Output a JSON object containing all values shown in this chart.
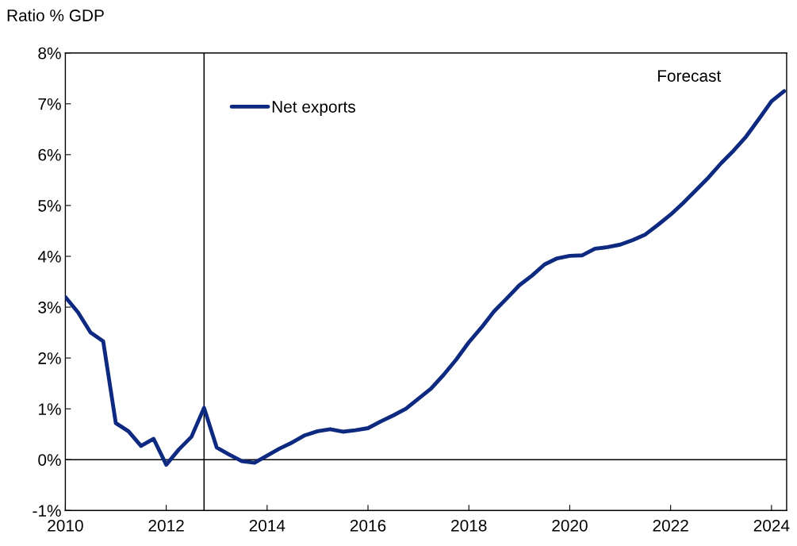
{
  "chart_data": {
    "type": "line",
    "ylabel": "Ratio % GDP",
    "x": [
      2010.0,
      2010.25,
      2010.5,
      2010.75,
      2011.0,
      2011.25,
      2011.5,
      2011.75,
      2012.0,
      2012.25,
      2012.5,
      2012.75,
      2013.0,
      2013.25,
      2013.5,
      2013.75,
      2014.0,
      2014.25,
      2014.5,
      2014.75,
      2015.0,
      2015.25,
      2015.5,
      2015.75,
      2016.0,
      2016.25,
      2016.5,
      2016.75,
      2017.0,
      2017.25,
      2017.5,
      2017.75,
      2018.0,
      2018.25,
      2018.5,
      2018.75,
      2019.0,
      2019.25,
      2019.5,
      2019.75,
      2020.0,
      2020.25,
      2020.5,
      2020.75,
      2021.0,
      2021.25,
      2021.5,
      2021.75,
      2022.0,
      2022.25,
      2022.5,
      2022.75,
      2023.0,
      2023.25,
      2023.5,
      2023.75,
      2024.0,
      2024.25
    ],
    "series": [
      {
        "name": "Net exports",
        "color": "#0d2a80",
        "values": [
          3.2,
          2.9,
          2.5,
          2.33,
          0.72,
          0.56,
          0.27,
          0.41,
          -0.1,
          0.2,
          0.45,
          1.02,
          0.24,
          0.1,
          -0.03,
          -0.06,
          0.08,
          0.22,
          0.34,
          0.48,
          0.56,
          0.6,
          0.55,
          0.58,
          0.62,
          0.75,
          0.87,
          1.0,
          1.2,
          1.4,
          1.67,
          1.97,
          2.31,
          2.6,
          2.92,
          3.17,
          3.43,
          3.62,
          3.84,
          3.96,
          4.01,
          4.02,
          4.15,
          4.18,
          4.23,
          4.32,
          4.43,
          4.62,
          4.82,
          5.05,
          5.3,
          5.55,
          5.83,
          6.08,
          6.36,
          6.7,
          7.05,
          7.25
        ]
      }
    ],
    "xlim": [
      2010,
      2024.3
    ],
    "xticks": [
      2010,
      2012,
      2014,
      2016,
      2018,
      2020,
      2022,
      2024
    ],
    "ylim": [
      -1,
      8
    ],
    "yticks": [
      {
        "value": -1,
        "label": "-1%"
      },
      {
        "value": 0,
        "label": "0%"
      },
      {
        "value": 1,
        "label": "1%"
      },
      {
        "value": 2,
        "label": "2%"
      },
      {
        "value": 3,
        "label": "3%"
      },
      {
        "value": 4,
        "label": "4%"
      },
      {
        "value": 5,
        "label": "5%"
      },
      {
        "value": 6,
        "label": "6%"
      },
      {
        "value": 7,
        "label": "7%"
      },
      {
        "value": 8,
        "label": "8%"
      }
    ],
    "ref_lines": [
      {
        "axis": "x",
        "value": 2012.75,
        "color": "#000000"
      },
      {
        "axis": "y",
        "value": 0,
        "color": "#000000"
      }
    ],
    "annotations": [
      "Forecast"
    ],
    "legend": "top",
    "grid": false,
    "marker": "none",
    "line_style": "solid"
  }
}
